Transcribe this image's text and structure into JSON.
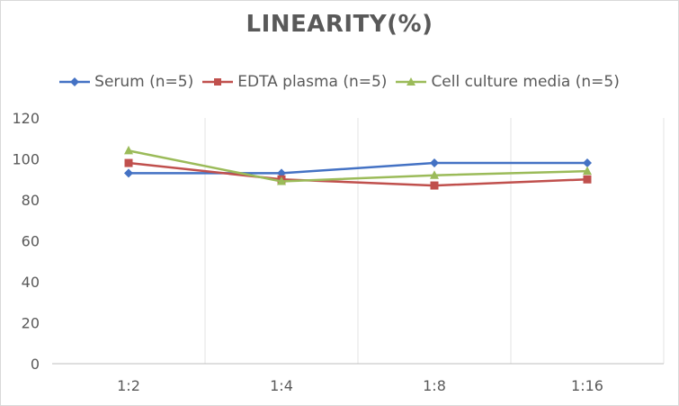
{
  "chart_data": {
    "type": "line",
    "title": "LINEARITY(%)",
    "categories": [
      "1:2",
      "1:4",
      "1:8",
      "1:16"
    ],
    "ylim": [
      0,
      120
    ],
    "yticks": [
      0,
      20,
      40,
      60,
      80,
      100,
      120
    ],
    "grid": "vertical",
    "legend_position": "top",
    "series": [
      {
        "name": "Serum (n=5)",
        "color": "#4472c4",
        "marker": "diamond",
        "values": [
          93,
          93,
          98,
          98
        ]
      },
      {
        "name": "EDTA plasma (n=5)",
        "color": "#c0504d",
        "marker": "square",
        "values": [
          98,
          90,
          87,
          90
        ]
      },
      {
        "name": "Cell culture media (n=5)",
        "color": "#9bbb59",
        "marker": "triangle",
        "values": [
          104,
          89,
          92,
          94
        ]
      }
    ]
  }
}
